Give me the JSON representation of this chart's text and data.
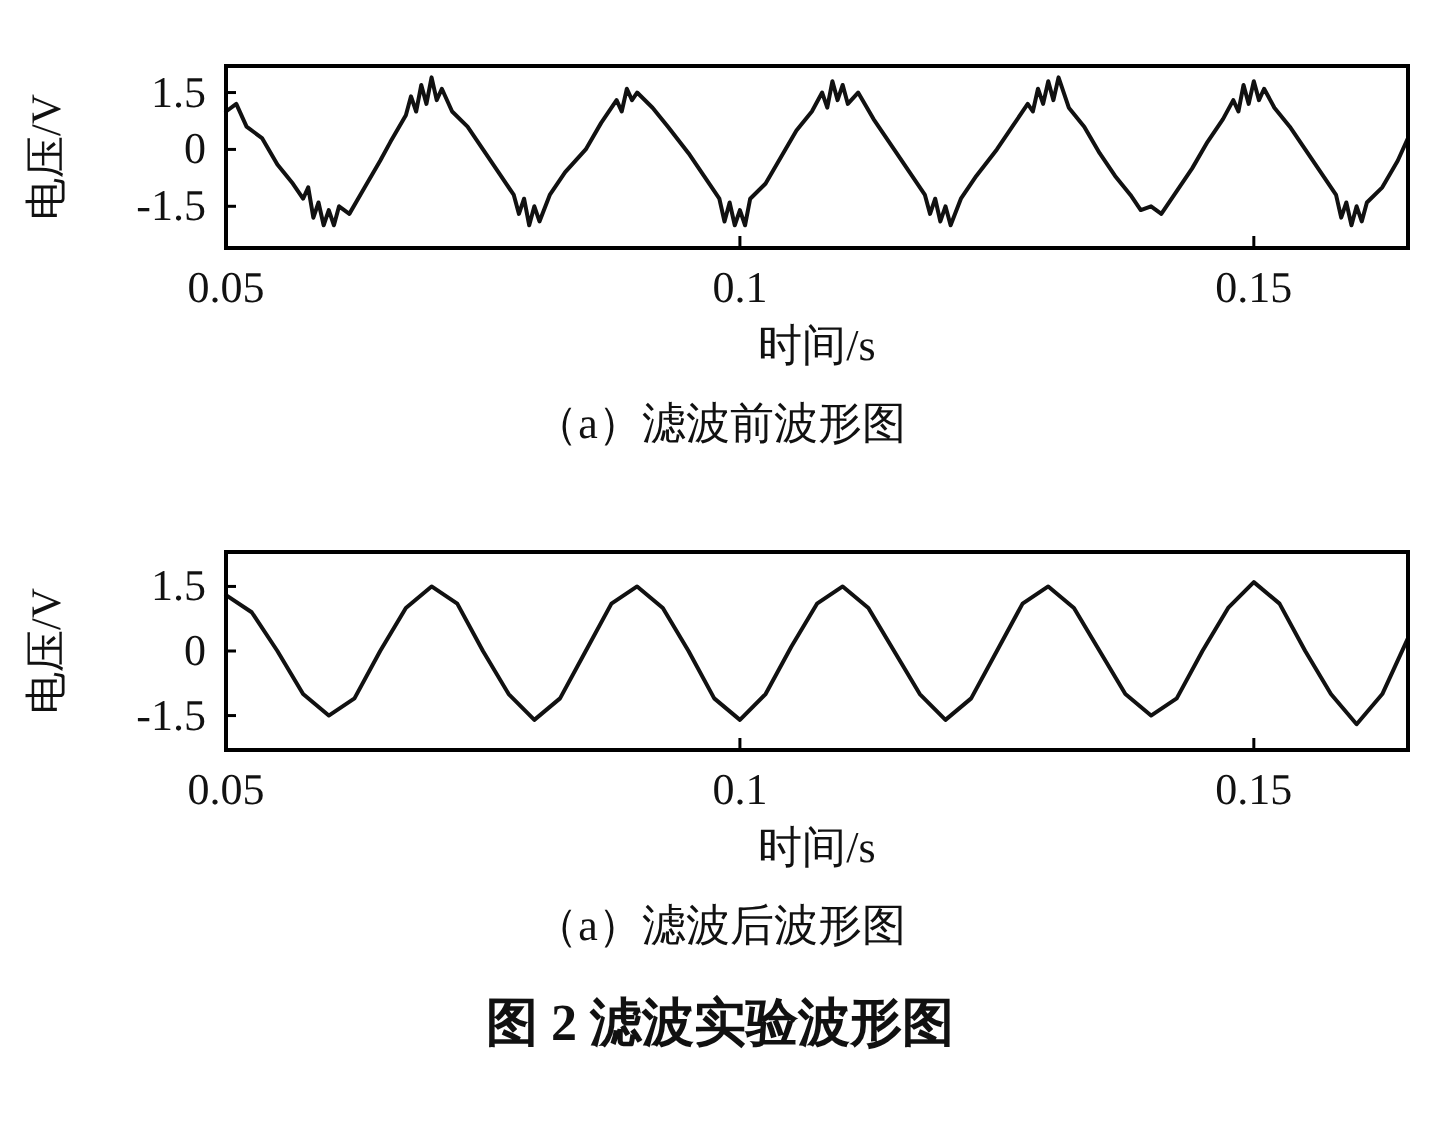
{
  "chart_data": [
    {
      "type": "line",
      "xlabel": "时间/s",
      "ylabel": "电压/V",
      "xlim": [
        0.05,
        0.165
      ],
      "xticks": [
        0.05,
        0.1,
        0.15
      ],
      "ylim": [
        -2.6,
        2.2
      ],
      "yticks": [
        1.5,
        0,
        -1.5
      ],
      "x": [
        0.05,
        0.051,
        0.052,
        0.0535,
        0.055,
        0.0565,
        0.0575,
        0.058,
        0.0585,
        0.059,
        0.0595,
        0.06,
        0.0605,
        0.061,
        0.062,
        0.0635,
        0.065,
        0.066,
        0.0675,
        0.068,
        0.0685,
        0.069,
        0.0695,
        0.07,
        0.0705,
        0.071,
        0.072,
        0.0735,
        0.075,
        0.0765,
        0.078,
        0.0785,
        0.079,
        0.0795,
        0.08,
        0.0805,
        0.0815,
        0.083,
        0.085,
        0.0865,
        0.088,
        0.0885,
        0.089,
        0.0895,
        0.09,
        0.0915,
        0.093,
        0.095,
        0.0965,
        0.098,
        0.0985,
        0.099,
        0.0995,
        0.1,
        0.1005,
        0.101,
        0.1025,
        0.104,
        0.1055,
        0.107,
        0.108,
        0.1085,
        0.109,
        0.1095,
        0.11,
        0.1105,
        0.1115,
        0.113,
        0.115,
        0.1165,
        0.118,
        0.1185,
        0.119,
        0.1195,
        0.12,
        0.1205,
        0.1215,
        0.123,
        0.125,
        0.1265,
        0.128,
        0.1285,
        0.129,
        0.1295,
        0.13,
        0.1305,
        0.131,
        0.132,
        0.1335,
        0.135,
        0.1365,
        0.138,
        0.139,
        0.14,
        0.141,
        0.1425,
        0.144,
        0.1455,
        0.147,
        0.148,
        0.1485,
        0.149,
        0.1495,
        0.15,
        0.1505,
        0.151,
        0.152,
        0.1535,
        0.155,
        0.1565,
        0.158,
        0.1585,
        0.159,
        0.1595,
        0.16,
        0.1605,
        0.161,
        0.1625,
        0.164,
        0.165
      ],
      "series": [
        {
          "color": "#111111",
          "values": [
            1.0,
            1.2,
            0.6,
            0.3,
            -0.4,
            -0.9,
            -1.3,
            -1.0,
            -1.8,
            -1.4,
            -2.0,
            -1.6,
            -2.0,
            -1.5,
            -1.7,
            -1.0,
            -0.3,
            0.2,
            0.9,
            1.4,
            1.0,
            1.7,
            1.2,
            1.9,
            1.3,
            1.6,
            1.0,
            0.6,
            0.0,
            -0.6,
            -1.2,
            -1.7,
            -1.3,
            -2.0,
            -1.5,
            -1.9,
            -1.2,
            -0.6,
            0.0,
            0.7,
            1.3,
            1.0,
            1.6,
            1.3,
            1.5,
            1.1,
            0.6,
            -0.1,
            -0.7,
            -1.3,
            -1.9,
            -1.4,
            -2.0,
            -1.6,
            -2.0,
            -1.3,
            -0.9,
            -0.2,
            0.5,
            1.0,
            1.5,
            1.1,
            1.8,
            1.3,
            1.7,
            1.2,
            1.5,
            0.8,
            0.0,
            -0.6,
            -1.2,
            -1.7,
            -1.3,
            -1.9,
            -1.5,
            -2.0,
            -1.3,
            -0.7,
            0.0,
            0.6,
            1.2,
            1.0,
            1.6,
            1.2,
            1.8,
            1.3,
            1.9,
            1.1,
            0.6,
            -0.1,
            -0.7,
            -1.2,
            -1.6,
            -1.5,
            -1.7,
            -1.1,
            -0.5,
            0.2,
            0.8,
            1.3,
            1.0,
            1.7,
            1.2,
            1.8,
            1.3,
            1.6,
            1.1,
            0.6,
            0.0,
            -0.6,
            -1.2,
            -1.8,
            -1.4,
            -2.0,
            -1.5,
            -1.9,
            -1.4,
            -1.0,
            -0.3,
            0.3
          ]
        }
      ],
      "annotations": [
        "（a）滤波前波形图"
      ]
    },
    {
      "type": "line",
      "xlabel": "时间/s",
      "ylabel": "电压/V",
      "xlim": [
        0.05,
        0.165
      ],
      "xticks": [
        0.05,
        0.1,
        0.15
      ],
      "ylim": [
        -2.3,
        2.3
      ],
      "yticks": [
        1.5,
        0,
        -1.5
      ],
      "x": [
        0.05,
        0.0525,
        0.055,
        0.0575,
        0.06,
        0.0625,
        0.065,
        0.0675,
        0.07,
        0.0725,
        0.075,
        0.0775,
        0.08,
        0.0825,
        0.085,
        0.0875,
        0.09,
        0.0925,
        0.095,
        0.0975,
        0.1,
        0.1025,
        0.105,
        0.1075,
        0.11,
        0.1125,
        0.115,
        0.1175,
        0.12,
        0.1225,
        0.125,
        0.1275,
        0.13,
        0.1325,
        0.135,
        0.1375,
        0.14,
        0.1425,
        0.145,
        0.1475,
        0.15,
        0.1525,
        0.155,
        0.1575,
        0.16,
        0.1625,
        0.165
      ],
      "series": [
        {
          "color": "#111111",
          "values": [
            1.3,
            0.9,
            0.0,
            -1.0,
            -1.5,
            -1.1,
            0.0,
            1.0,
            1.5,
            1.1,
            0.0,
            -1.0,
            -1.6,
            -1.1,
            0.0,
            1.1,
            1.5,
            1.0,
            0.0,
            -1.1,
            -1.6,
            -1.0,
            0.1,
            1.1,
            1.5,
            1.0,
            0.0,
            -1.0,
            -1.6,
            -1.1,
            0.0,
            1.1,
            1.5,
            1.0,
            0.0,
            -1.0,
            -1.5,
            -1.1,
            0.0,
            1.0,
            1.6,
            1.1,
            0.0,
            -1.0,
            -1.7,
            -1.0,
            0.3
          ]
        }
      ],
      "annotations": [
        "（a）滤波后波形图",
        "图 2  滤波实验波形图"
      ]
    }
  ]
}
